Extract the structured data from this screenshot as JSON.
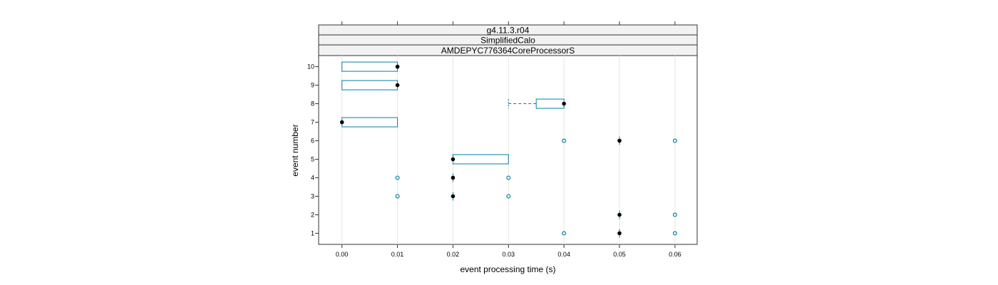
{
  "chart_data": {
    "type": "box",
    "strips": [
      "g4.11.3.r04",
      "SimplifiedCalo",
      "AMDEPYC776364CoreProcessorS"
    ],
    "xlabel": "event processing time (s)",
    "ylabel": "event number",
    "xlim": [
      -0.0042,
      0.064
    ],
    "ylim": [
      0.4,
      10.6
    ],
    "x_ticks": [
      "0.00",
      "0.01",
      "0.02",
      "0.03",
      "0.04",
      "0.05",
      "0.06"
    ],
    "y_ticks": [
      "1",
      "2",
      "3",
      "4",
      "5",
      "6",
      "7",
      "8",
      "9",
      "10"
    ],
    "grid": "vertical",
    "colors": {
      "box": "#0080a8",
      "median": "#000000",
      "outlier": "#0080a8",
      "strip_bg": "#f2f2f2",
      "grid": "#e6e6e6"
    },
    "series": [
      {
        "event": 1,
        "median": 0.05,
        "outliers": [
          0.04,
          0.06
        ]
      },
      {
        "event": 2,
        "median": 0.05,
        "outliers": [
          0.06
        ]
      },
      {
        "event": 3,
        "median": 0.02,
        "outliers": [
          0.01,
          0.03
        ]
      },
      {
        "event": 4,
        "median": 0.02,
        "outliers": [
          0.01,
          0.03
        ]
      },
      {
        "event": 5,
        "median": 0.02,
        "box": [
          0.02,
          0.03
        ]
      },
      {
        "event": 6,
        "median": 0.05,
        "outliers": [
          0.04,
          0.06
        ]
      },
      {
        "event": 7,
        "median": 0.0,
        "box": [
          0.0,
          0.01
        ]
      },
      {
        "event": 8,
        "median": 0.04,
        "box": [
          0.035,
          0.04
        ],
        "whisker_low": 0.03
      },
      {
        "event": 9,
        "median": 0.01,
        "box": [
          0.0,
          0.01
        ]
      },
      {
        "event": 10,
        "median": 0.01,
        "box": [
          0.0,
          0.01
        ]
      }
    ]
  }
}
